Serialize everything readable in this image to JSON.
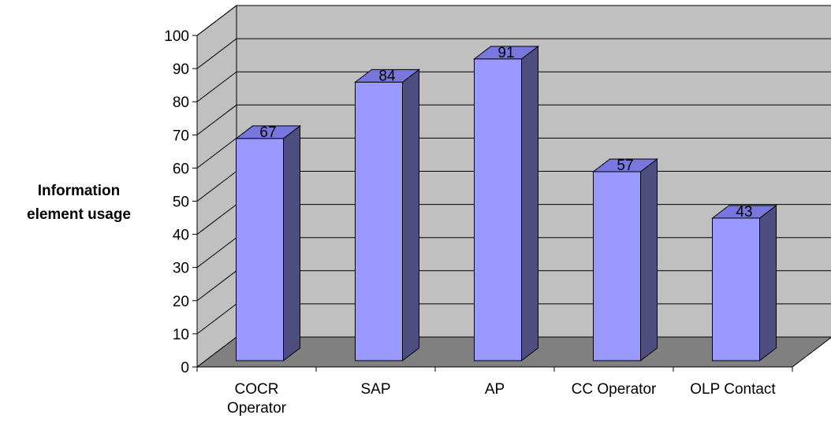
{
  "chart_data": {
    "type": "bar",
    "categories": [
      "COCR Operator",
      "SAP",
      "AP",
      "CC Operator",
      "OLP Contact"
    ],
    "category_lines": [
      [
        "COCR",
        "Operator"
      ],
      [
        "SAP"
      ],
      [
        "AP"
      ],
      [
        "CC Operator"
      ],
      [
        "OLP Contact"
      ]
    ],
    "values": [
      67,
      84,
      91,
      57,
      43
    ],
    "ylabel_lines": [
      "Information",
      "element usage"
    ],
    "ylim": [
      0,
      100
    ],
    "yticks": [
      0,
      10,
      20,
      30,
      40,
      50,
      60,
      70,
      80,
      90,
      100
    ],
    "grid": true,
    "style": "3d"
  },
  "colors": {
    "bar_front": "#9999ff",
    "bar_side": "#4d4d80",
    "bar_top": "#7777dd",
    "back_wall": "#c0c0c0",
    "side_wall": "#c0c0c0",
    "floor": "#808080",
    "gridline": "#000000"
  }
}
